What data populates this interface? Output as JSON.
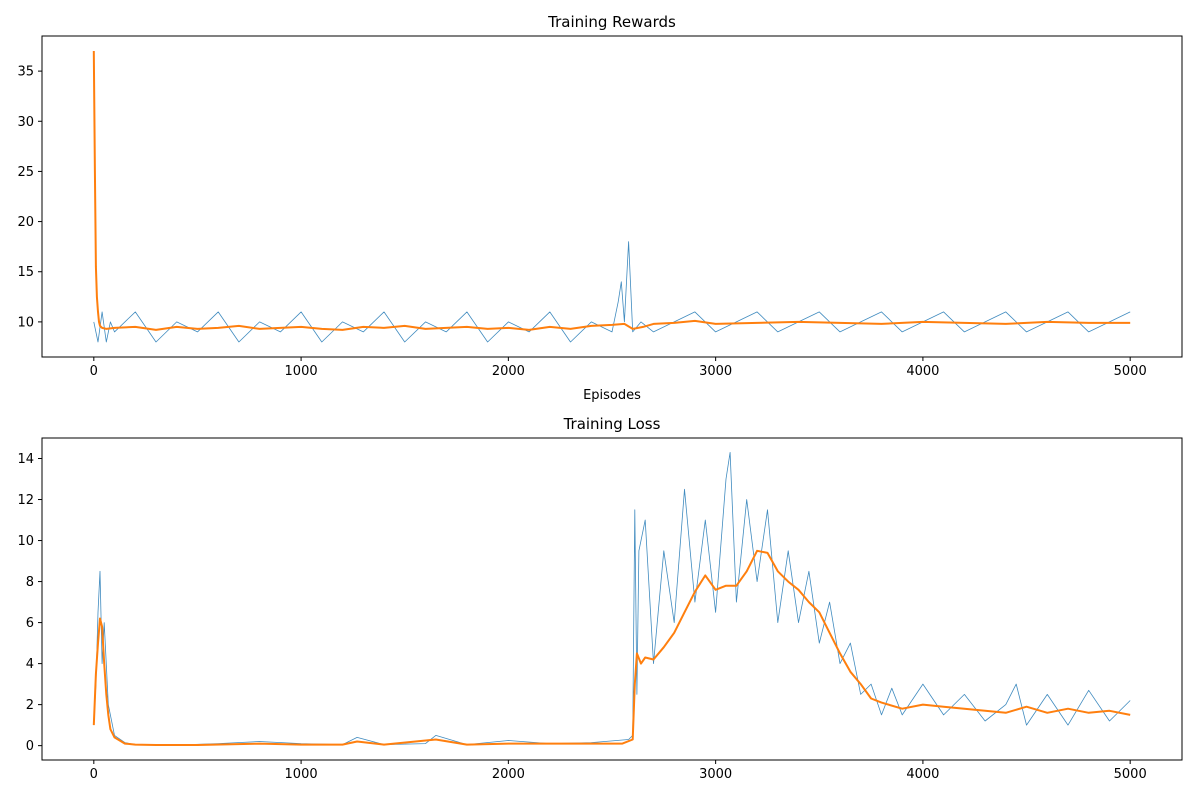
{
  "chart_data": [
    {
      "type": "line",
      "title": "Training Rewards",
      "xlabel": "Episodes",
      "ylabel": "",
      "xlim": [
        -250,
        5250
      ],
      "ylim": [
        6.5,
        38.5
      ],
      "xticks": [
        0,
        1000,
        2000,
        3000,
        4000,
        5000
      ],
      "yticks": [
        10,
        15,
        20,
        25,
        30,
        35
      ],
      "grid": false,
      "series": [
        {
          "role": "raw",
          "color": "#1f77b4",
          "x": [
            0,
            20,
            40,
            60,
            80,
            100,
            200,
            300,
            400,
            500,
            600,
            700,
            800,
            900,
            1000,
            1100,
            1200,
            1300,
            1400,
            1500,
            1600,
            1700,
            1800,
            1900,
            2000,
            2100,
            2200,
            2300,
            2400,
            2500,
            2530,
            2545,
            2560,
            2580,
            2600,
            2640,
            2700,
            2800,
            2900,
            3000,
            3100,
            3200,
            3300,
            3400,
            3500,
            3600,
            3700,
            3800,
            3900,
            4000,
            4100,
            4200,
            4300,
            4400,
            4500,
            4600,
            4700,
            4800,
            4900,
            5000
          ],
          "y": [
            10,
            8,
            11,
            8,
            10,
            9,
            11,
            8,
            10,
            9,
            11,
            8,
            10,
            9,
            11,
            8,
            10,
            9,
            11,
            8,
            10,
            9,
            11,
            8,
            10,
            9,
            11,
            8,
            10,
            9,
            12,
            14,
            10,
            18,
            9,
            10,
            9,
            10,
            11,
            9,
            10,
            11,
            9,
            10,
            11,
            9,
            10,
            11,
            9,
            10,
            11,
            9,
            10,
            11,
            9,
            10,
            11,
            9,
            10,
            11
          ]
        },
        {
          "role": "smoothed",
          "color": "#ff7f0e",
          "x": [
            0,
            5,
            10,
            15,
            20,
            25,
            30,
            40,
            60,
            100,
            200,
            300,
            400,
            500,
            600,
            700,
            800,
            900,
            1000,
            1100,
            1200,
            1300,
            1400,
            1500,
            1600,
            1700,
            1800,
            1900,
            2000,
            2100,
            2200,
            2300,
            2400,
            2500,
            2560,
            2600,
            2650,
            2700,
            2800,
            2900,
            3000,
            3200,
            3400,
            3600,
            3800,
            4000,
            4200,
            4400,
            4600,
            4800,
            5000
          ],
          "y": [
            37,
            25,
            15.5,
            12.5,
            11,
            10,
            9.6,
            9.4,
            9.3,
            9.4,
            9.5,
            9.2,
            9.5,
            9.3,
            9.4,
            9.6,
            9.3,
            9.4,
            9.5,
            9.3,
            9.2,
            9.5,
            9.4,
            9.6,
            9.3,
            9.4,
            9.5,
            9.3,
            9.4,
            9.2,
            9.5,
            9.3,
            9.6,
            9.7,
            9.8,
            9.3,
            9.5,
            9.8,
            9.9,
            10.1,
            9.8,
            9.9,
            10.0,
            9.9,
            9.8,
            10.0,
            9.9,
            9.8,
            10.0,
            9.9,
            9.9
          ]
        }
      ]
    },
    {
      "type": "line",
      "title": "Training Loss",
      "xlabel": "",
      "ylabel": "",
      "xlim": [
        -250,
        5250
      ],
      "ylim": [
        -0.7,
        15.0
      ],
      "xticks": [
        0,
        1000,
        2000,
        3000,
        4000,
        5000
      ],
      "yticks": [
        0,
        2,
        4,
        6,
        8,
        10,
        12,
        14
      ],
      "grid": false,
      "series": [
        {
          "role": "raw",
          "color": "#1f77b4",
          "x": [
            0,
            10,
            20,
            30,
            40,
            50,
            70,
            100,
            150,
            200,
            400,
            600,
            800,
            1000,
            1200,
            1270,
            1400,
            1600,
            1650,
            1800,
            2000,
            2200,
            2400,
            2580,
            2600,
            2610,
            2620,
            2630,
            2660,
            2700,
            2750,
            2800,
            2850,
            2900,
            2950,
            3000,
            3050,
            3070,
            3100,
            3150,
            3200,
            3250,
            3300,
            3350,
            3400,
            3450,
            3500,
            3550,
            3600,
            3650,
            3700,
            3750,
            3800,
            3850,
            3900,
            4000,
            4100,
            4200,
            4300,
            4400,
            4450,
            4500,
            4600,
            4700,
            4800,
            4900,
            5000
          ],
          "y": [
            1.0,
            3.0,
            6.5,
            8.5,
            4.0,
            6.0,
            2.0,
            0.5,
            0.15,
            0.05,
            0.03,
            0.1,
            0.2,
            0.1,
            0.05,
            0.4,
            0.05,
            0.1,
            0.5,
            0.05,
            0.25,
            0.1,
            0.15,
            0.3,
            0.5,
            11.5,
            2.5,
            9.5,
            11.0,
            4.0,
            9.5,
            6.0,
            12.5,
            7.0,
            11.0,
            6.5,
            13.0,
            14.3,
            7.0,
            12.0,
            8.0,
            11.5,
            6.0,
            9.5,
            6.0,
            8.5,
            5.0,
            7.0,
            4.0,
            5.0,
            2.5,
            3.0,
            1.5,
            2.8,
            1.5,
            3.0,
            1.5,
            2.5,
            1.2,
            2.0,
            3.0,
            1.0,
            2.5,
            1.0,
            2.7,
            1.2,
            2.2
          ]
        },
        {
          "role": "smoothed",
          "color": "#ff7f0e",
          "x": [
            0,
            10,
            20,
            30,
            40,
            50,
            60,
            70,
            80,
            100,
            150,
            200,
            300,
            500,
            800,
            1000,
            1200,
            1270,
            1400,
            1650,
            1800,
            2000,
            2200,
            2400,
            2550,
            2600,
            2610,
            2620,
            2640,
            2660,
            2700,
            2750,
            2800,
            2850,
            2900,
            2950,
            3000,
            3050,
            3100,
            3150,
            3200,
            3250,
            3300,
            3350,
            3400,
            3450,
            3500,
            3550,
            3600,
            3650,
            3700,
            3750,
            3800,
            3900,
            4000,
            4100,
            4200,
            4300,
            4400,
            4500,
            4600,
            4700,
            4800,
            4900,
            5000
          ],
          "y": [
            1.0,
            3.5,
            5.0,
            6.2,
            5.8,
            4.0,
            2.5,
            1.5,
            0.8,
            0.4,
            0.1,
            0.05,
            0.03,
            0.03,
            0.1,
            0.05,
            0.05,
            0.2,
            0.05,
            0.3,
            0.05,
            0.1,
            0.1,
            0.1,
            0.1,
            0.3,
            3.0,
            4.5,
            4.0,
            4.3,
            4.2,
            4.8,
            5.5,
            6.5,
            7.5,
            8.3,
            7.6,
            7.8,
            7.8,
            8.5,
            9.5,
            9.4,
            8.5,
            8.0,
            7.6,
            7.0,
            6.5,
            5.5,
            4.5,
            3.6,
            3.0,
            2.3,
            2.1,
            1.8,
            2.0,
            1.9,
            1.8,
            1.7,
            1.6,
            1.9,
            1.6,
            1.8,
            1.6,
            1.7,
            1.5
          ]
        }
      ]
    }
  ]
}
